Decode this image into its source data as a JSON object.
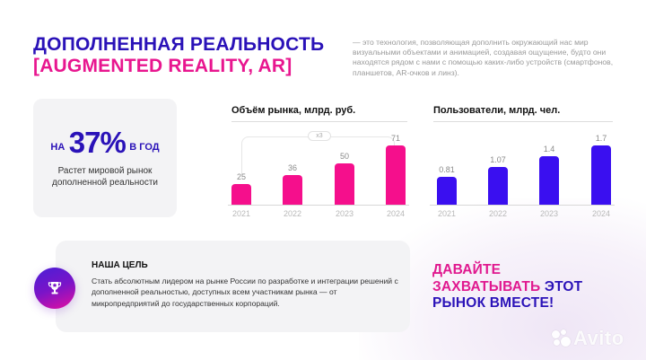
{
  "header": {
    "title_line1": "ДОПОЛНЕННАЯ РЕАЛЬНОСТЬ",
    "title_line2": "[AUGMENTED REALITY, AR]",
    "description": "— это технология, позволяющая дополнить окружающий нас мир визуальными объектами и анимацией, создавая ощущение, будто они находятся рядом с нами с помощью каких-либо устройств (смартфонов, планшетов, AR-очков и линз)."
  },
  "stat": {
    "prefix": "НА",
    "value": "37%",
    "suffix": "В ГОД",
    "caption_line1": "Растет мировой рынок",
    "caption_line2": "дополненной реальности"
  },
  "colors": {
    "brand_blue": "#2a12b8",
    "brand_pink": "#e8168f",
    "bar_pink": "#f50f8c",
    "bar_blue": "#3a0ff0"
  },
  "chart_data": [
    {
      "type": "bar",
      "title": "Объём рынка, млрд. руб.",
      "categories": [
        "2021",
        "2022",
        "2023",
        "2024"
      ],
      "values": [
        25,
        36,
        50,
        71
      ],
      "value_labels": [
        "25",
        "36",
        "50",
        "71"
      ],
      "annotation": "x3",
      "xlabel": "",
      "ylabel": "",
      "color": "#f50f8c"
    },
    {
      "type": "bar",
      "title": "Пользователи, млрд. чел.",
      "categories": [
        "2021",
        "2022",
        "2023",
        "2024"
      ],
      "values": [
        0.81,
        1.07,
        1.4,
        1.7
      ],
      "value_labels": [
        "0.81",
        "1.07",
        "1.4",
        "1.7"
      ],
      "xlabel": "",
      "ylabel": "",
      "color": "#3a0ff0"
    }
  ],
  "goal": {
    "title": "НАША ЦЕЛЬ",
    "text": "Стать абсолютным лидером на рынке России по разработке и интеграции решений с дополненной реальностью, доступных всем участникам рынка — от микропредприятий до государственных корпораций.",
    "icon": "trophy-icon"
  },
  "cta": {
    "part1": "ДАВАЙТЕ",
    "part2": "ЗАХВАТЫВАТЬ",
    "part3": "ЭТОТ",
    "part4": "РЫНОК ВМЕСТЕ!"
  },
  "watermark": {
    "text": "Avito"
  }
}
